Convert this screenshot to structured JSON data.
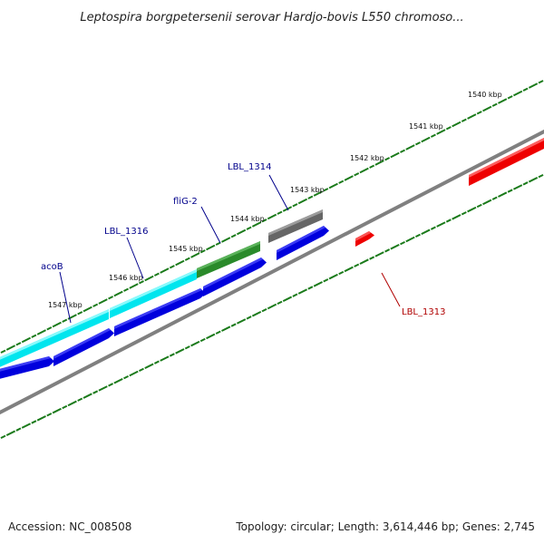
{
  "title": "Leptospira borgpetersenii serovar Hardjo-bovis L550 chromoso...",
  "ticks": [
    {
      "label": "1540 kbp"
    },
    {
      "label": "1541 kbp"
    },
    {
      "label": "1542 kbp"
    },
    {
      "label": "1543 kbp"
    },
    {
      "label": "1544 kbp"
    },
    {
      "label": "1545 kbp"
    },
    {
      "label": "1546 kbp"
    },
    {
      "label": "1547 kbp"
    }
  ],
  "gene_labels": [
    {
      "name": "acoB",
      "color": "#00008b"
    },
    {
      "name": "LBL_1316",
      "color": "#00008b"
    },
    {
      "name": "fliG-2",
      "color": "#00008b"
    },
    {
      "name": "LBL_1314",
      "color": "#00008b"
    },
    {
      "name": "LBL_1313",
      "color": "#b00000"
    }
  ],
  "colors": {
    "backbone": "#808080",
    "tick": "#1a7a1a",
    "cyan_feature": "#00e5ee",
    "green_feature": "#2a8a2a",
    "gray_feature": "#666666",
    "blue_feature": "#0000dd",
    "red_feature": "#ee0000"
  },
  "footer": {
    "accession": "Accession: NC_008508",
    "topology": "Topology: circular; Length: 3,614,446 bp; Genes: 2,745"
  }
}
